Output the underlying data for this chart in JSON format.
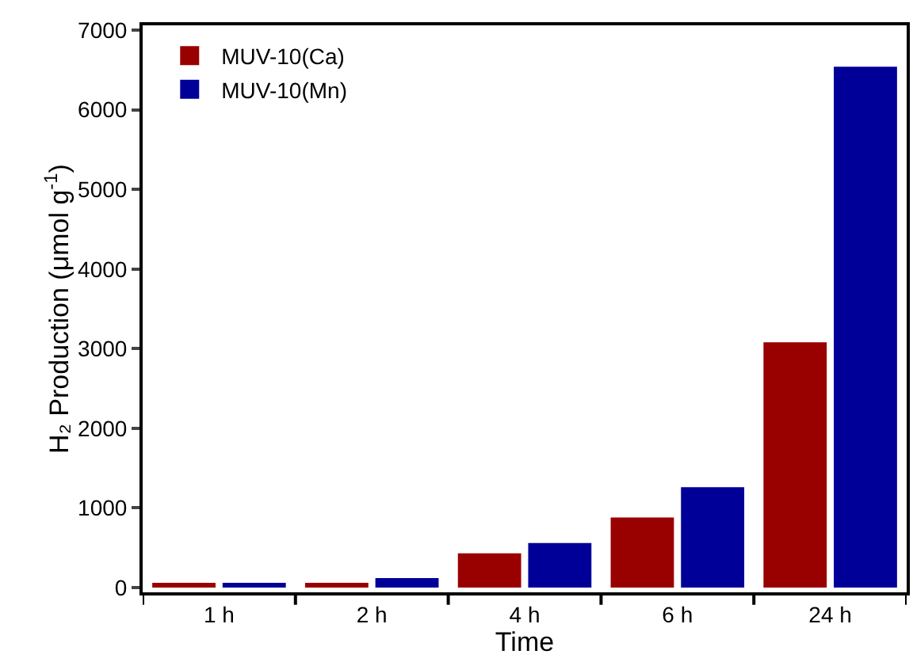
{
  "chart_data": {
    "type": "bar",
    "xlabel": "Time",
    "ylabel": "H₂ Production (μmol g$^{-1}$)",
    "categories": [
      "1 h",
      "2 h",
      "4 h",
      "6 h",
      "24 h"
    ],
    "series": [
      {
        "name": "MUV-10(Ca)",
        "color": "#990000",
        "values": [
          60,
          60,
          430,
          880,
          3080
        ]
      },
      {
        "name": "MUV-10(Mn)",
        "color": "#000099",
        "values": [
          60,
          120,
          560,
          1260,
          6540
        ]
      }
    ],
    "ylim": [
      -60,
      7060
    ],
    "yticks": [
      0,
      1000,
      2000,
      3000,
      4000,
      5000,
      6000,
      7000
    ],
    "grid": false,
    "legend": "top left"
  }
}
